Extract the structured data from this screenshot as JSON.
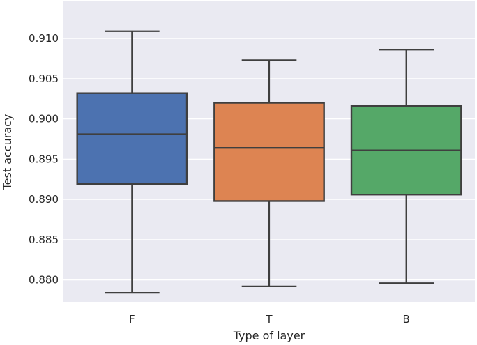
{
  "chart_data": {
    "type": "box",
    "title": "",
    "xlabel": "Type of layer",
    "ylabel": "Test accuracy",
    "ylim": [
      0.8772,
      0.9146
    ],
    "y_ticks": [
      0.88,
      0.885,
      0.89,
      0.895,
      0.9,
      0.905,
      0.91
    ],
    "y_tick_labels": [
      "0.880",
      "0.885",
      "0.890",
      "0.895",
      "0.900",
      "0.905",
      "0.910"
    ],
    "categories": [
      "F",
      "T",
      "B"
    ],
    "grid": true,
    "boxes": [
      {
        "category": "F",
        "whisker_low": 0.8784,
        "q1": 0.8919,
        "median": 0.8981,
        "q3": 0.9032,
        "whisker_high": 0.9109,
        "color": "#4c72b0"
      },
      {
        "category": "T",
        "whisker_low": 0.8792,
        "q1": 0.8898,
        "median": 0.8964,
        "q3": 0.902,
        "whisker_high": 0.9073,
        "color": "#dd8452"
      },
      {
        "category": "B",
        "whisker_low": 0.8796,
        "q1": 0.8906,
        "median": 0.8961,
        "q3": 0.9016,
        "whisker_high": 0.9086,
        "color": "#55a868"
      }
    ],
    "colors": {
      "background": "#eaeaf2",
      "grid": "#ffffff",
      "line": "#3f3f3f",
      "text": "#262626"
    }
  }
}
